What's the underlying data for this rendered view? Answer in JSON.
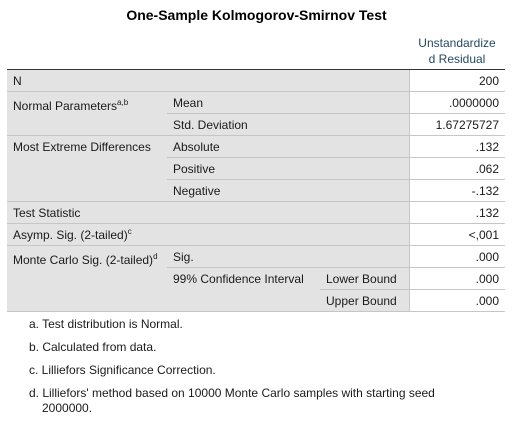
{
  "title": "One-Sample Kolmogorov-Smirnov Test",
  "table": {
    "header": "Unstandardized Residual",
    "n": {
      "label": "N",
      "value": "200"
    },
    "normal_parameters": {
      "label": "Normal Parameters",
      "note": "a,b",
      "mean": {
        "label": "Mean",
        "value": ".0000000"
      },
      "std_deviation": {
        "label": "Std. Deviation",
        "value": "1.67275727"
      }
    },
    "most_extreme_differences": {
      "label": "Most Extreme Differences",
      "absolute": {
        "label": "Absolute",
        "value": ".132"
      },
      "positive": {
        "label": "Positive",
        "value": ".062"
      },
      "negative": {
        "label": "Negative",
        "value": "-.132"
      }
    },
    "test_statistic": {
      "label": "Test Statistic",
      "value": ".132"
    },
    "asymp_sig": {
      "label": "Asymp. Sig. (2-tailed)",
      "note": "c",
      "value": "<,001"
    },
    "monte_carlo": {
      "label": "Monte Carlo Sig. (2-tailed)",
      "note": "d",
      "sig": {
        "label": "Sig.",
        "value": ".000"
      },
      "ci": {
        "label": "99% Confidence Interval",
        "lower": {
          "label": "Lower Bound",
          "value": ".000"
        },
        "upper": {
          "label": "Upper Bound",
          "value": ".000"
        }
      }
    }
  },
  "footnotes": [
    "a. Test distribution is Normal.",
    "b. Calculated from data.",
    "c. Lilliefors Significance Correction.",
    "d. Lilliefors' method based on 10000 Monte Carlo samples with starting seed 2000000."
  ]
}
